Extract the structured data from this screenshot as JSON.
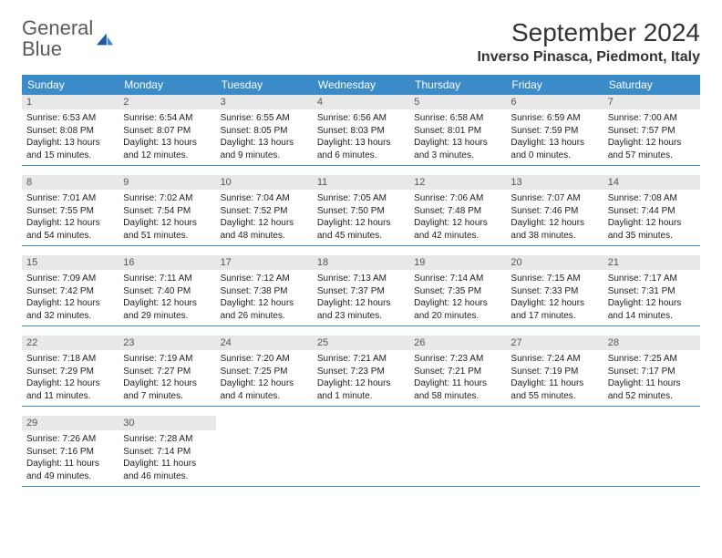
{
  "logo": {
    "text_gray": "General",
    "text_blue": "Blue"
  },
  "title": "September 2024",
  "location": "Inverso Pinasca, Piedmont, Italy",
  "colors": {
    "header_bg": "#3b8bc9",
    "header_fg": "#ffffff",
    "daynum_bg": "#e8e8e8",
    "daynum_fg": "#555555",
    "rule": "#3b8bc9",
    "logo_gray": "#5a5a5a",
    "logo_blue": "#3b7fbf"
  },
  "weekdays": [
    "Sunday",
    "Monday",
    "Tuesday",
    "Wednesday",
    "Thursday",
    "Friday",
    "Saturday"
  ],
  "weeks": [
    [
      {
        "n": "1",
        "sunrise": "6:53 AM",
        "sunset": "8:08 PM",
        "daylight": "13 hours and 15 minutes."
      },
      {
        "n": "2",
        "sunrise": "6:54 AM",
        "sunset": "8:07 PM",
        "daylight": "13 hours and 12 minutes."
      },
      {
        "n": "3",
        "sunrise": "6:55 AM",
        "sunset": "8:05 PM",
        "daylight": "13 hours and 9 minutes."
      },
      {
        "n": "4",
        "sunrise": "6:56 AM",
        "sunset": "8:03 PM",
        "daylight": "13 hours and 6 minutes."
      },
      {
        "n": "5",
        "sunrise": "6:58 AM",
        "sunset": "8:01 PM",
        "daylight": "13 hours and 3 minutes."
      },
      {
        "n": "6",
        "sunrise": "6:59 AM",
        "sunset": "7:59 PM",
        "daylight": "13 hours and 0 minutes."
      },
      {
        "n": "7",
        "sunrise": "7:00 AM",
        "sunset": "7:57 PM",
        "daylight": "12 hours and 57 minutes."
      }
    ],
    [
      {
        "n": "8",
        "sunrise": "7:01 AM",
        "sunset": "7:55 PM",
        "daylight": "12 hours and 54 minutes."
      },
      {
        "n": "9",
        "sunrise": "7:02 AM",
        "sunset": "7:54 PM",
        "daylight": "12 hours and 51 minutes."
      },
      {
        "n": "10",
        "sunrise": "7:04 AM",
        "sunset": "7:52 PM",
        "daylight": "12 hours and 48 minutes."
      },
      {
        "n": "11",
        "sunrise": "7:05 AM",
        "sunset": "7:50 PM",
        "daylight": "12 hours and 45 minutes."
      },
      {
        "n": "12",
        "sunrise": "7:06 AM",
        "sunset": "7:48 PM",
        "daylight": "12 hours and 42 minutes."
      },
      {
        "n": "13",
        "sunrise": "7:07 AM",
        "sunset": "7:46 PM",
        "daylight": "12 hours and 38 minutes."
      },
      {
        "n": "14",
        "sunrise": "7:08 AM",
        "sunset": "7:44 PM",
        "daylight": "12 hours and 35 minutes."
      }
    ],
    [
      {
        "n": "15",
        "sunrise": "7:09 AM",
        "sunset": "7:42 PM",
        "daylight": "12 hours and 32 minutes."
      },
      {
        "n": "16",
        "sunrise": "7:11 AM",
        "sunset": "7:40 PM",
        "daylight": "12 hours and 29 minutes."
      },
      {
        "n": "17",
        "sunrise": "7:12 AM",
        "sunset": "7:38 PM",
        "daylight": "12 hours and 26 minutes."
      },
      {
        "n": "18",
        "sunrise": "7:13 AM",
        "sunset": "7:37 PM",
        "daylight": "12 hours and 23 minutes."
      },
      {
        "n": "19",
        "sunrise": "7:14 AM",
        "sunset": "7:35 PM",
        "daylight": "12 hours and 20 minutes."
      },
      {
        "n": "20",
        "sunrise": "7:15 AM",
        "sunset": "7:33 PM",
        "daylight": "12 hours and 17 minutes."
      },
      {
        "n": "21",
        "sunrise": "7:17 AM",
        "sunset": "7:31 PM",
        "daylight": "12 hours and 14 minutes."
      }
    ],
    [
      {
        "n": "22",
        "sunrise": "7:18 AM",
        "sunset": "7:29 PM",
        "daylight": "12 hours and 11 minutes."
      },
      {
        "n": "23",
        "sunrise": "7:19 AM",
        "sunset": "7:27 PM",
        "daylight": "12 hours and 7 minutes."
      },
      {
        "n": "24",
        "sunrise": "7:20 AM",
        "sunset": "7:25 PM",
        "daylight": "12 hours and 4 minutes."
      },
      {
        "n": "25",
        "sunrise": "7:21 AM",
        "sunset": "7:23 PM",
        "daylight": "12 hours and 1 minute."
      },
      {
        "n": "26",
        "sunrise": "7:23 AM",
        "sunset": "7:21 PM",
        "daylight": "11 hours and 58 minutes."
      },
      {
        "n": "27",
        "sunrise": "7:24 AM",
        "sunset": "7:19 PM",
        "daylight": "11 hours and 55 minutes."
      },
      {
        "n": "28",
        "sunrise": "7:25 AM",
        "sunset": "7:17 PM",
        "daylight": "11 hours and 52 minutes."
      }
    ],
    [
      {
        "n": "29",
        "sunrise": "7:26 AM",
        "sunset": "7:16 PM",
        "daylight": "11 hours and 49 minutes."
      },
      {
        "n": "30",
        "sunrise": "7:28 AM",
        "sunset": "7:14 PM",
        "daylight": "11 hours and 46 minutes."
      },
      null,
      null,
      null,
      null,
      null
    ]
  ],
  "labels": {
    "sunrise": "Sunrise: ",
    "sunset": "Sunset: ",
    "daylight": "Daylight: "
  }
}
